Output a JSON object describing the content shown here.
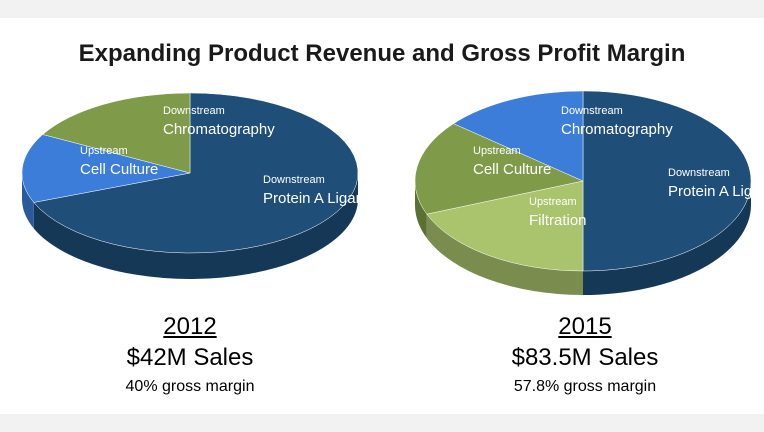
{
  "title": "Expanding Product Revenue and Gross Profit Margin",
  "colors": {
    "protein_a": "#1f4e79",
    "chromatography": "#3b7dd8",
    "cell_culture": "#7f9b4a",
    "filtration": "#a9c46c"
  },
  "chart_data": [
    {
      "type": "pie",
      "title": "",
      "slices": [
        {
          "segment": "Downstream",
          "label": "Protein A Ligands",
          "value": 69,
          "color": "#1f4e79"
        },
        {
          "segment": "Downstream",
          "label": "Chromatography",
          "value": 14,
          "color": "#3b7dd8"
        },
        {
          "segment": "Upstream",
          "label": "Cell Culture",
          "value": 17,
          "color": "#7f9b4a"
        }
      ],
      "caption": {
        "year": "2012",
        "sales": "$42M Sales",
        "margin": "40% gross margin"
      }
    },
    {
      "type": "pie",
      "title": "",
      "slices": [
        {
          "segment": "Downstream",
          "label": "Protein A Ligands",
          "value": 50,
          "color": "#1f4e79"
        },
        {
          "segment": "Upstream",
          "label": "Filtration",
          "value": 19,
          "color": "#a9c46c"
        },
        {
          "segment": "Upstream",
          "label": "Cell Culture",
          "value": 17,
          "color": "#7f9b4a"
        },
        {
          "segment": "Downstream",
          "label": "Chromatography",
          "value": 14,
          "color": "#3b7dd8"
        }
      ],
      "caption": {
        "year": "2015",
        "sales": "$83.5M Sales",
        "margin": "57.8% gross margin"
      }
    }
  ]
}
